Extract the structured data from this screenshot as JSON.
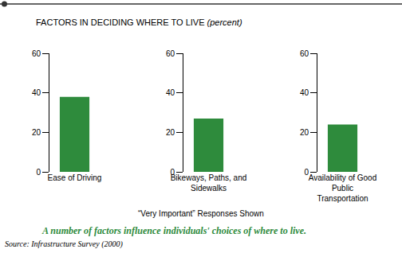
{
  "title": "FACTORS IN DECIDING WHERE TO LIVE",
  "title_unit": "(percent)",
  "note": "“Very Important” Responses Shown",
  "caption": "A number of factors influence individuals' choices of where to live.",
  "source": "Source: Infrastructure Survey (2000)",
  "chart_data": [
    {
      "type": "bar",
      "categories": [
        "Ease of Driving"
      ],
      "values": [
        38
      ],
      "color": "#2e8b3c",
      "ylim": [
        0,
        60
      ],
      "yticks": [
        0,
        20,
        40,
        60
      ],
      "grid": false
    },
    {
      "type": "bar",
      "categories": [
        "Bikeways, Paths, and Sidewalks"
      ],
      "values": [
        27
      ],
      "color": "#2e8b3c",
      "ylim": [
        0,
        60
      ],
      "yticks": [
        0,
        20,
        40,
        60
      ],
      "grid": false
    },
    {
      "type": "bar",
      "categories": [
        "Availability of Good Public Transportation"
      ],
      "values": [
        24
      ],
      "color": "#2e8b3c",
      "ylim": [
        0,
        60
      ],
      "yticks": [
        0,
        20,
        40,
        60
      ],
      "grid": false
    }
  ]
}
